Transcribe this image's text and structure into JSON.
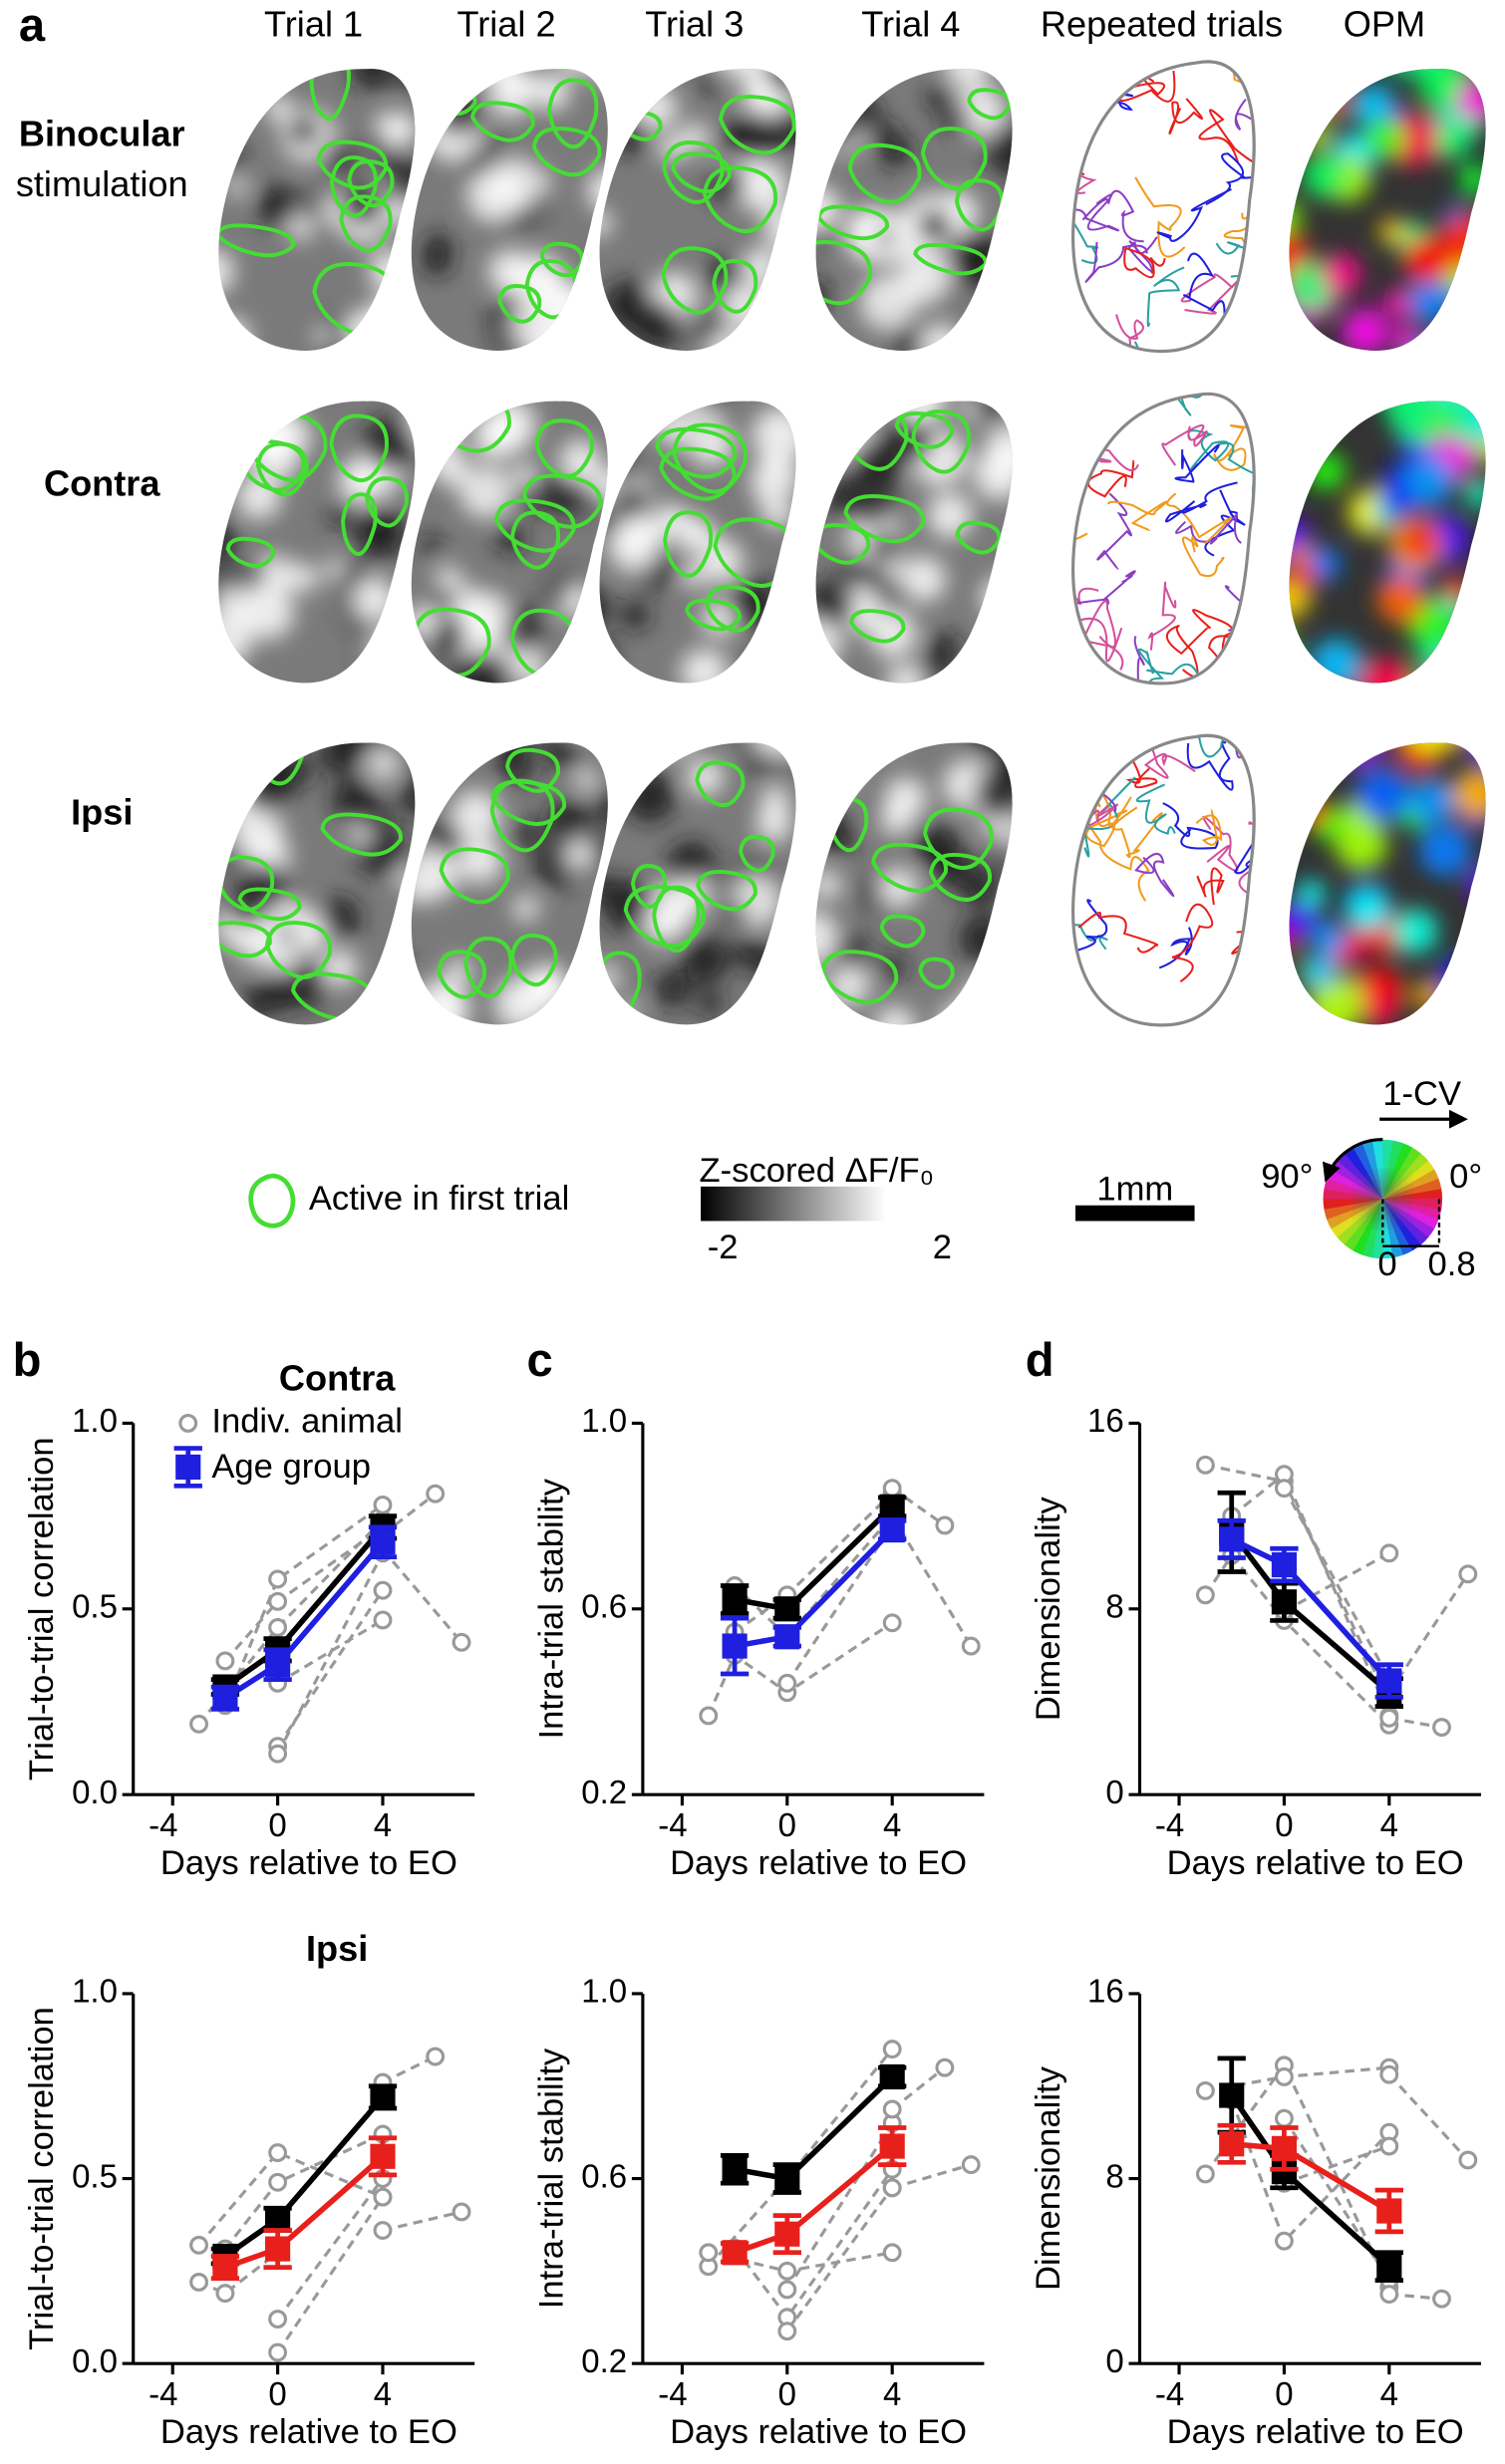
{
  "panel_labels": [
    "a",
    "b",
    "c",
    "d"
  ],
  "panel_a": {
    "columns": [
      "Trial 1",
      "Trial 2",
      "Trial 3",
      "Trial 4",
      "Repeated trials",
      "OPM"
    ],
    "rows": [
      {
        "lines": [
          "Binocular",
          "stimulation"
        ],
        "color": "#000000"
      },
      {
        "lines": [
          "Contra"
        ],
        "color": "#3a1fe0"
      },
      {
        "lines": [
          "Ipsi"
        ],
        "color": "#e8201c"
      }
    ],
    "contour_legend": "Active in first trial",
    "colorbar_title": "Z-scored ΔF/F₀",
    "colorbar_ticks": [
      -2,
      2
    ],
    "scale_bar": "1mm",
    "wheel": {
      "title": "1-CV",
      "angle_labels": [
        "90°",
        "0°"
      ],
      "ticks": [
        0,
        0.8
      ]
    }
  },
  "chart_data": [
    {
      "type": "line",
      "title": "Contra",
      "title_color": "#3a1fe0",
      "xlabel": "Days relative to EO",
      "ylabel": "Trial-to-trial correlation",
      "xlim": [
        -5.5,
        7.5
      ],
      "xticks": [
        -4,
        0,
        4
      ],
      "ylim": [
        0,
        1
      ],
      "yticks": [
        {
          "value": 0,
          "label": "0.0"
        },
        0.5,
        {
          "value": 1,
          "label": "1.0"
        }
      ],
      "legend": [
        "Indiv. animal",
        "Age group"
      ],
      "animal_color": "#999999",
      "x": [
        -2,
        0,
        4
      ],
      "groups": [
        {
          "color": "#000000",
          "values": [
            0.29,
            0.39,
            0.72
          ],
          "errors": [
            0.02,
            0.03,
            0.03
          ]
        },
        {
          "color": "#1f1fe0",
          "values": [
            0.26,
            0.35,
            0.68
          ],
          "errors": [
            0.03,
            0.04,
            0.04
          ]
        }
      ],
      "animals": [
        {
          "x": [
            -3,
            0,
            4
          ],
          "values": [
            0.19,
            0.45,
            0.74
          ]
        },
        {
          "x": [
            -2,
            0,
            4
          ],
          "values": [
            0.24,
            0.58,
            0.78
          ]
        },
        {
          "x": [
            -2,
            0,
            4
          ],
          "values": [
            0.36,
            0.52,
            0.72
          ]
        },
        {
          "x": [
            0,
            4
          ],
          "values": [
            0.13,
            0.55
          ]
        },
        {
          "x": [
            0,
            4
          ],
          "values": [
            0.11,
            0.65
          ]
        },
        {
          "x": [
            0,
            4
          ],
          "values": [
            0.3,
            0.47
          ]
        },
        {
          "x": [
            4,
            6
          ],
          "values": [
            0.7,
            0.81
          ]
        },
        {
          "x": [
            4,
            7
          ],
          "values": [
            0.66,
            0.41
          ]
        }
      ]
    },
    {
      "type": "line",
      "xlabel": "Days relative to EO",
      "ylabel": "Intra-trial stability",
      "xlim": [
        -5.5,
        7.5
      ],
      "xticks": [
        -4,
        0,
        4
      ],
      "ylim": [
        0.2,
        1
      ],
      "yticks": [
        0.2,
        0.6,
        {
          "value": 1,
          "label": "1.0"
        }
      ],
      "animal_color": "#999999",
      "x": [
        -2,
        0,
        4
      ],
      "groups": [
        {
          "color": "#000000",
          "values": [
            0.62,
            0.6,
            0.82
          ],
          "errors": [
            0.03,
            0.02,
            0.02
          ]
        },
        {
          "color": "#1f1fe0",
          "values": [
            0.52,
            0.54,
            0.77
          ],
          "errors": [
            0.06,
            0.02,
            0.02
          ]
        }
      ],
      "animals": [
        {
          "x": [
            -3,
            -2,
            0,
            4
          ],
          "values": [
            0.37,
            0.5,
            0.42,
            0.57
          ]
        },
        {
          "x": [
            -2,
            0,
            4
          ],
          "values": [
            0.55,
            0.63,
            0.85
          ]
        },
        {
          "x": [
            -2,
            0,
            4
          ],
          "values": [
            0.65,
            0.54,
            0.8
          ]
        },
        {
          "x": [
            0,
            4
          ],
          "values": [
            0.44,
            0.78
          ]
        },
        {
          "x": [
            4,
            6
          ],
          "values": [
            0.86,
            0.78
          ]
        },
        {
          "x": [
            4,
            7
          ],
          "values": [
            0.8,
            0.52
          ]
        }
      ]
    },
    {
      "type": "line",
      "xlabel": "Days relative to EO",
      "ylabel": "Dimensionality",
      "xlim": [
        -5.5,
        7.5
      ],
      "xticks": [
        -4,
        0,
        4
      ],
      "ylim": [
        0,
        16
      ],
      "yticks": [
        0,
        8,
        16
      ],
      "animal_color": "#999999",
      "x": [
        -2,
        0,
        4
      ],
      "groups": [
        {
          "color": "#000000",
          "values": [
            11.3,
            8.3,
            4.4
          ],
          "errors": [
            1.7,
            0.8,
            0.6
          ]
        },
        {
          "color": "#1f1fe0",
          "values": [
            11,
            9.9,
            4.9
          ],
          "errors": [
            0.8,
            0.7,
            0.7
          ]
        }
      ],
      "animals": [
        {
          "x": [
            -3,
            -2,
            0,
            4
          ],
          "values": [
            8.6,
            10.3,
            7.5,
            3
          ]
        },
        {
          "x": [
            -3,
            0,
            4
          ],
          "values": [
            14.2,
            13.5,
            4
          ]
        },
        {
          "x": [
            -2,
            0,
            4
          ],
          "values": [
            12,
            13.8,
            3.4
          ]
        },
        {
          "x": [
            0,
            4
          ],
          "values": [
            13.2,
            5
          ]
        },
        {
          "x": [
            0,
            4
          ],
          "values": [
            7.9,
            10.4
          ]
        },
        {
          "x": [
            4,
            6
          ],
          "values": [
            3.3,
            2.9
          ]
        },
        {
          "x": [
            4,
            7
          ],
          "values": [
            4.4,
            9.5
          ]
        }
      ]
    },
    {
      "type": "line",
      "title": "Ipsi",
      "title_color": "#e8201c",
      "xlabel": "Days relative to EO",
      "ylabel": "Trial-to-trial correlation",
      "xlim": [
        -5.5,
        7.5
      ],
      "xticks": [
        -4,
        0,
        4
      ],
      "ylim": [
        0,
        1
      ],
      "yticks": [
        {
          "value": 0,
          "label": "0.0"
        },
        0.5,
        {
          "value": 1,
          "label": "1.0"
        }
      ],
      "animal_color": "#999999",
      "x": [
        -2,
        0,
        4
      ],
      "groups": [
        {
          "color": "#000000",
          "values": [
            0.29,
            0.39,
            0.72
          ],
          "errors": [
            0.02,
            0.03,
            0.03
          ]
        },
        {
          "color": "#e8201c",
          "values": [
            0.26,
            0.31,
            0.56
          ],
          "errors": [
            0.03,
            0.05,
            0.05
          ]
        }
      ],
      "animals": [
        {
          "x": [
            -3,
            0,
            4
          ],
          "values": [
            0.32,
            0.57,
            0.45
          ]
        },
        {
          "x": [
            -3,
            -2,
            0
          ],
          "values": [
            0.22,
            0.19,
            0.3
          ]
        },
        {
          "x": [
            0,
            4
          ],
          "values": [
            0.03,
            0.45
          ]
        },
        {
          "x": [
            0,
            4
          ],
          "values": [
            0.12,
            0.5
          ]
        },
        {
          "x": [
            -2,
            0,
            4
          ],
          "values": [
            0.31,
            0.49,
            0.62
          ]
        },
        {
          "x": [
            4,
            6
          ],
          "values": [
            0.76,
            0.83
          ]
        },
        {
          "x": [
            4,
            7
          ],
          "values": [
            0.36,
            0.41
          ]
        }
      ]
    },
    {
      "type": "line",
      "xlabel": "Days relative to EO",
      "ylabel": "Intra-trial stability",
      "xlim": [
        -5.5,
        7.5
      ],
      "xticks": [
        -4,
        0,
        4
      ],
      "ylim": [
        0.2,
        1
      ],
      "yticks": [
        0.2,
        0.6,
        {
          "value": 1,
          "label": "1.0"
        }
      ],
      "animal_color": "#999999",
      "x": [
        -2,
        0,
        4
      ],
      "groups": [
        {
          "color": "#000000",
          "values": [
            0.62,
            0.6,
            0.82
          ],
          "errors": [
            0.03,
            0.03,
            0.02
          ]
        },
        {
          "color": "#e8201c",
          "values": [
            0.44,
            0.48,
            0.67
          ],
          "errors": [
            0.02,
            0.04,
            0.04
          ]
        }
      ],
      "animals": [
        {
          "x": [
            -3,
            0,
            4
          ],
          "values": [
            0.41,
            0.6,
            0.88
          ]
        },
        {
          "x": [
            -3,
            0,
            4
          ],
          "values": [
            0.44,
            0.4,
            0.44
          ]
        },
        {
          "x": [
            -2,
            0,
            4
          ],
          "values": [
            0.45,
            0.3,
            0.62
          ]
        },
        {
          "x": [
            0,
            4
          ],
          "values": [
            0.27,
            0.58
          ]
        },
        {
          "x": [
            0,
            4
          ],
          "values": [
            0.36,
            0.72
          ]
        },
        {
          "x": [
            4,
            6
          ],
          "values": [
            0.75,
            0.84
          ]
        },
        {
          "x": [
            4,
            7
          ],
          "values": [
            0.58,
            0.63
          ]
        }
      ]
    },
    {
      "type": "line",
      "xlabel": "Days relative to EO",
      "ylabel": "Dimensionality",
      "xlim": [
        -5.5,
        7.5
      ],
      "xticks": [
        -4,
        0,
        4
      ],
      "ylim": [
        0,
        16
      ],
      "yticks": [
        0,
        8,
        16
      ],
      "animal_color": "#999999",
      "x": [
        -2,
        0,
        4
      ],
      "groups": [
        {
          "color": "#000000",
          "values": [
            11.6,
            8.3,
            4.2
          ],
          "errors": [
            1.6,
            0.7,
            0.6
          ]
        },
        {
          "color": "#e8201c",
          "values": [
            9.5,
            9.3,
            6.6
          ],
          "errors": [
            0.8,
            0.9,
            0.9
          ]
        }
      ],
      "animals": [
        {
          "x": [
            -3,
            0,
            4
          ],
          "values": [
            8.2,
            12.9,
            3.3
          ]
        },
        {
          "x": [
            -3,
            0,
            4
          ],
          "values": [
            11.8,
            12.4,
            12.8
          ]
        },
        {
          "x": [
            -2,
            0,
            4
          ],
          "values": [
            11.4,
            5.3,
            10
          ]
        },
        {
          "x": [
            0,
            4
          ],
          "values": [
            7.8,
            9.4
          ]
        },
        {
          "x": [
            0,
            4
          ],
          "values": [
            10.6,
            3.6
          ]
        },
        {
          "x": [
            4,
            6
          ],
          "values": [
            3,
            2.8
          ]
        },
        {
          "x": [
            4,
            7
          ],
          "values": [
            12.5,
            8.8
          ]
        }
      ]
    }
  ]
}
